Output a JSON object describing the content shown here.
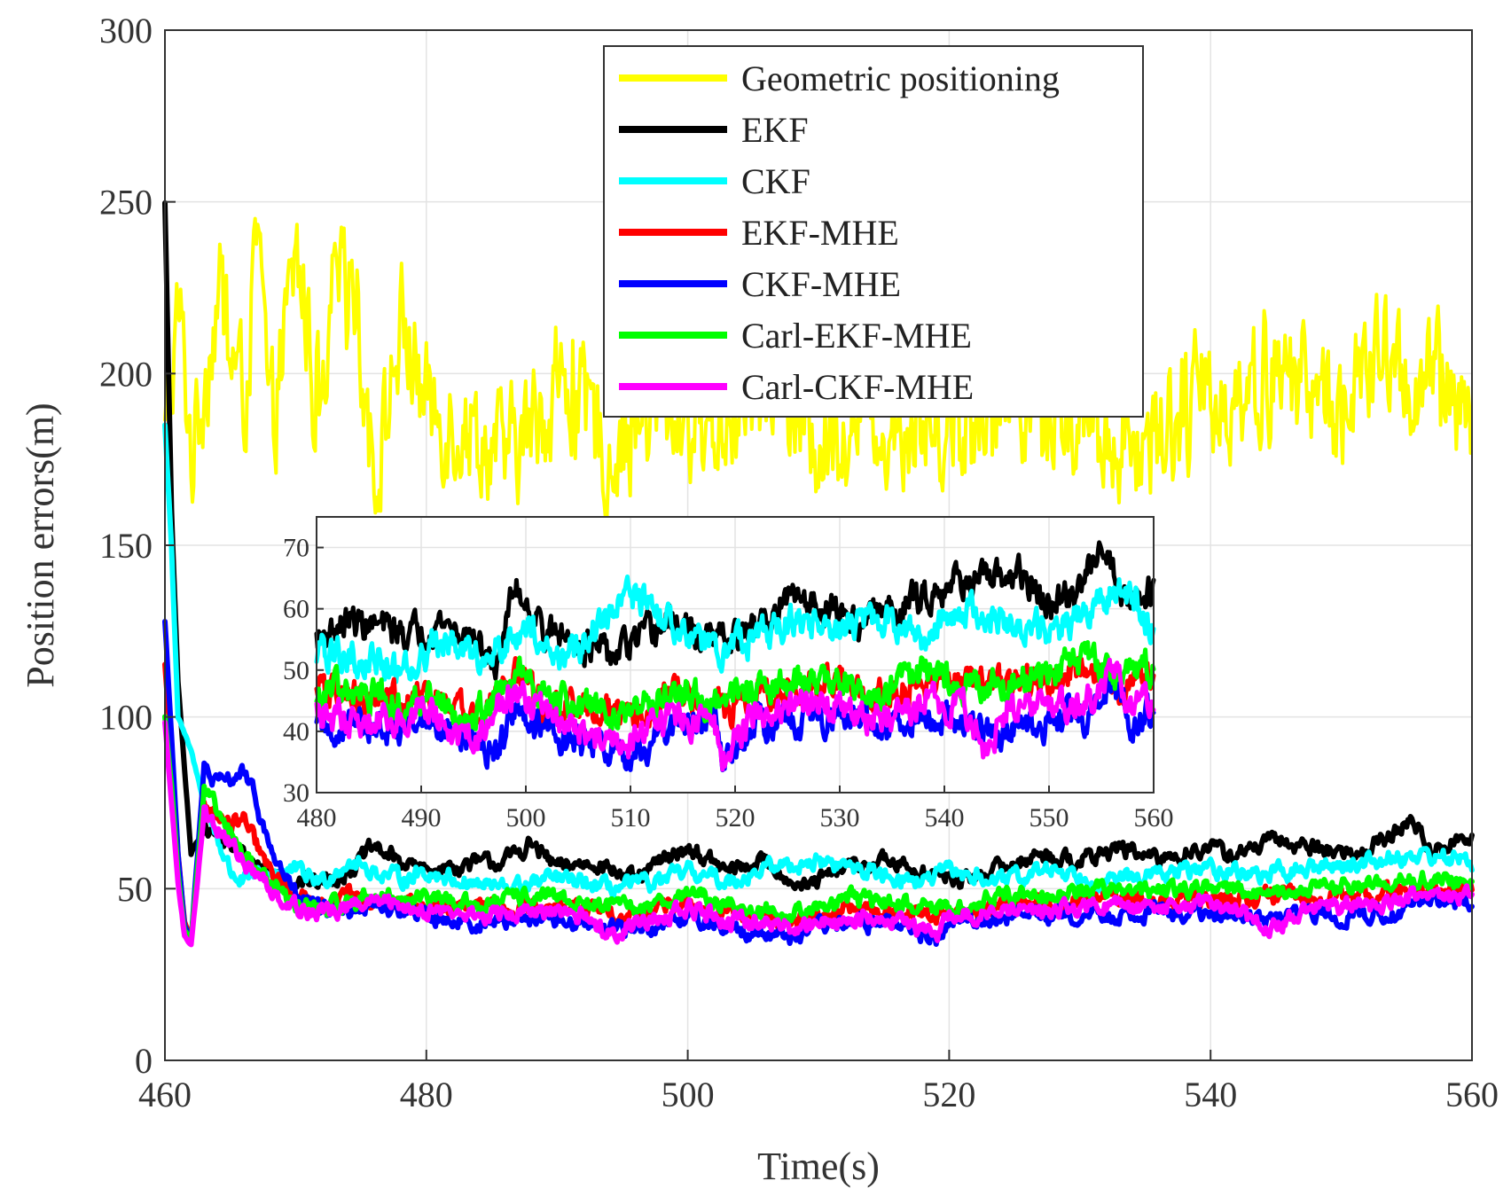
{
  "chart_data": [
    {
      "type": "line",
      "title": "",
      "xlabel": "Time(s)",
      "ylabel": "Position errors(m)",
      "xlim": [
        460,
        560
      ],
      "ylim": [
        0,
        300
      ],
      "xticks": [
        460,
        480,
        500,
        520,
        540,
        560
      ],
      "yticks": [
        0,
        50,
        100,
        150,
        200,
        250,
        300
      ],
      "grid": true,
      "legend_location": "top-center",
      "series": [
        {
          "name": "Geometric positioning",
          "color": "#ffff00",
          "x": [
            460,
            461,
            462,
            464,
            466,
            467,
            468,
            470,
            472,
            474,
            476,
            478,
            480,
            483,
            486,
            490,
            494,
            498,
            502,
            506,
            510,
            514,
            518,
            522,
            526,
            530,
            534,
            538,
            542,
            546,
            550,
            553,
            556,
            558,
            560
          ],
          "values": [
            180,
            220,
            175,
            225,
            190,
            245,
            180,
            235,
            185,
            245,
            165,
            215,
            190,
            185,
            175,
            195,
            180,
            190,
            185,
            195,
            180,
            190,
            185,
            190,
            195,
            185,
            180,
            190,
            195,
            200,
            190,
            205,
            195,
            200,
            190
          ],
          "range": [
            155,
            248
          ]
        },
        {
          "name": "EKF",
          "color": "#000000",
          "x": [
            460,
            460.5,
            461,
            461.5,
            462,
            463,
            464,
            466,
            468,
            470,
            472,
            474,
            476,
            478,
            480,
            483,
            486,
            488,
            490,
            493,
            496,
            498,
            500,
            503,
            506,
            509,
            512,
            515,
            518,
            521,
            524,
            527,
            530,
            533,
            536,
            539,
            542,
            545,
            548,
            551,
            554,
            555.5,
            557,
            558.5,
            560
          ],
          "values": [
            250,
            160,
            110,
            85,
            60,
            68,
            65,
            60,
            55,
            52,
            52,
            55,
            62,
            58,
            55,
            57,
            58,
            63,
            56,
            58,
            52,
            58,
            62,
            55,
            58,
            50,
            56,
            58,
            55,
            52,
            56,
            60,
            58,
            62,
            58,
            62,
            60,
            64,
            62,
            60,
            66,
            70,
            60,
            64,
            64
          ]
        },
        {
          "name": "CKF",
          "color": "#00ffff",
          "x": [
            460,
            460.5,
            461,
            462,
            463,
            464,
            465,
            466,
            468,
            470,
            472,
            474,
            476,
            478,
            480,
            483,
            486,
            490,
            494,
            498,
            500,
            503,
            506,
            510,
            514,
            518,
            520,
            524,
            528,
            532,
            536,
            540,
            544,
            548,
            552,
            556,
            560
          ],
          "values": [
            185,
            150,
            100,
            90,
            75,
            65,
            55,
            52,
            55,
            55,
            52,
            58,
            55,
            53,
            55,
            52,
            50,
            53,
            50,
            52,
            55,
            52,
            56,
            58,
            55,
            52,
            55,
            52,
            56,
            52,
            54,
            56,
            54,
            56,
            58,
            60,
            58
          ]
        },
        {
          "name": "EKF-MHE",
          "color": "#ff0000",
          "x": [
            460,
            460.5,
            461,
            461.5,
            462,
            463,
            464,
            465,
            466,
            468,
            470,
            472,
            474,
            476,
            480,
            484,
            488,
            492,
            496,
            500,
            504,
            508,
            512,
            516,
            520,
            524,
            528,
            532,
            536,
            540,
            544,
            548,
            552,
            556,
            560
          ],
          "values": [
            115,
            90,
            60,
            40,
            35,
            75,
            72,
            68,
            70,
            55,
            48,
            45,
            48,
            46,
            45,
            44,
            45,
            44,
            42,
            46,
            42,
            41,
            44,
            43,
            42,
            45,
            46,
            47,
            46,
            47,
            48,
            47,
            48,
            50,
            50
          ]
        },
        {
          "name": "CKF-MHE",
          "color": "#0000ff",
          "x": [
            460,
            460.5,
            461,
            461.5,
            462,
            463,
            464,
            465,
            466,
            467,
            468,
            470,
            472,
            474,
            476,
            480,
            484,
            488,
            492,
            496,
            500,
            504,
            508,
            512,
            516,
            519,
            520,
            524,
            528,
            532,
            536,
            540,
            544,
            548,
            552,
            556,
            560
          ],
          "values": [
            128,
            95,
            60,
            40,
            35,
            85,
            80,
            82,
            84,
            75,
            62,
            48,
            43,
            44,
            45,
            42,
            40,
            42,
            40,
            38,
            42,
            38,
            36,
            40,
            40,
            34,
            40,
            42,
            43,
            42,
            44,
            42,
            41,
            43,
            42,
            45,
            47
          ]
        },
        {
          "name": "Carl-EKF-MHE",
          "color": "#00ff00",
          "x": [
            460,
            460.5,
            461,
            461.5,
            462,
            463,
            464,
            466,
            468,
            470,
            472,
            476,
            480,
            484,
            488,
            492,
            496,
            500,
            504,
            508,
            512,
            516,
            520,
            524,
            528,
            532,
            536,
            540,
            544,
            548,
            552,
            556,
            560
          ],
          "values": [
            100,
            80,
            55,
            38,
            35,
            78,
            72,
            60,
            52,
            45,
            44,
            48,
            47,
            45,
            48,
            46,
            44,
            49,
            44,
            43,
            47,
            46,
            44,
            48,
            49,
            50,
            49,
            51,
            48,
            50,
            51,
            53,
            52
          ]
        },
        {
          "name": "Carl-CKF-MHE",
          "color": "#ff00ff",
          "x": [
            460,
            460.5,
            461,
            461.5,
            462,
            463,
            464,
            466,
            468,
            470,
            472,
            476,
            480,
            484,
            488,
            492,
            494,
            496,
            500,
            504,
            508,
            512,
            516,
            519,
            520,
            524,
            528,
            532,
            536,
            540,
            544,
            548,
            552,
            556,
            560
          ],
          "values": [
            98,
            75,
            52,
            36,
            34,
            72,
            68,
            58,
            50,
            45,
            43,
            46,
            44,
            42,
            43,
            42,
            37,
            40,
            44,
            40,
            39,
            41,
            42,
            36,
            42,
            43,
            44,
            45,
            44,
            46,
            39,
            44,
            45,
            47,
            48
          ]
        }
      ]
    },
    {
      "type": "line",
      "role": "inset",
      "title": "",
      "xlim": [
        480,
        560
      ],
      "ylim": [
        30,
        75
      ],
      "xticks": [
        480,
        490,
        500,
        510,
        520,
        530,
        540,
        550,
        560
      ],
      "yticks": [
        30,
        40,
        50,
        60,
        70
      ],
      "grid": true,
      "series": [
        {
          "name": "EKF",
          "color": "#000000",
          "x": [
            480,
            483,
            486,
            489,
            492,
            495,
            497,
            499,
            502,
            505,
            508,
            511,
            514,
            517,
            520,
            523,
            526,
            529,
            532,
            535,
            538,
            541,
            544,
            547,
            550,
            553,
            555,
            557,
            560
          ],
          "values": [
            55,
            58,
            57,
            56,
            58,
            55,
            50,
            64,
            56,
            55,
            52,
            55,
            58,
            55,
            55,
            58,
            62,
            60,
            58,
            60,
            62,
            65,
            64,
            66,
            60,
            63,
            72,
            62,
            63
          ]
        },
        {
          "name": "CKF",
          "color": "#00ffff",
          "x": [
            480,
            484,
            488,
            492,
            496,
            500,
            503,
            506,
            510,
            514,
            518,
            522,
            526,
            530,
            534,
            538,
            542,
            546,
            550,
            554,
            557,
            560
          ],
          "values": [
            53,
            52,
            50,
            55,
            52,
            58,
            52,
            55,
            62,
            58,
            53,
            55,
            58,
            56,
            58,
            55,
            60,
            58,
            56,
            60,
            64,
            57
          ]
        },
        {
          "name": "EKF-MHE",
          "color": "#ff0000",
          "x": [
            480,
            484,
            488,
            492,
            495,
            499,
            502,
            506,
            510,
            514,
            518,
            522,
            526,
            530,
            534,
            538,
            542,
            546,
            550,
            554,
            557,
            560
          ],
          "values": [
            47,
            46,
            45,
            45,
            42,
            49,
            44,
            44,
            42,
            46,
            43,
            46,
            47,
            48,
            46,
            48,
            48,
            47,
            49,
            51,
            47,
            50
          ]
        },
        {
          "name": "CKF-MHE",
          "color": "#0000ff",
          "x": [
            480,
            484,
            488,
            492,
            495,
            497,
            499,
            502,
            506,
            510,
            514,
            518,
            519,
            522,
            526,
            530,
            534,
            538,
            542,
            546,
            550,
            554,
            556,
            558,
            560
          ],
          "values": [
            40,
            41,
            40,
            42,
            38,
            36,
            44,
            40,
            38,
            36,
            40,
            42,
            34,
            42,
            41,
            43,
            41,
            43,
            41,
            40,
            42,
            43,
            48,
            41,
            43
          ]
        },
        {
          "name": "Carl-EKF-MHE",
          "color": "#00ff00",
          "x": [
            480,
            484,
            488,
            492,
            495,
            499,
            502,
            506,
            510,
            514,
            518,
            522,
            526,
            530,
            534,
            538,
            542,
            546,
            550,
            554,
            557,
            560
          ],
          "values": [
            46,
            47,
            45,
            46,
            42,
            50,
            46,
            44,
            42,
            47,
            44,
            47,
            48,
            48,
            46,
            49,
            48,
            48,
            50,
            52,
            48,
            51
          ]
        },
        {
          "name": "Carl-CKF-MHE",
          "color": "#ff00ff",
          "x": [
            480,
            484,
            488,
            492,
            495,
            499,
            502,
            506,
            510,
            514,
            518,
            519,
            522,
            526,
            530,
            534,
            538,
            542,
            544,
            546,
            550,
            554,
            556,
            558,
            560
          ],
          "values": [
            44,
            42,
            43,
            42,
            38,
            47,
            42,
            40,
            38,
            42,
            42,
            36,
            43,
            44,
            44,
            42,
            45,
            44,
            37,
            44,
            44,
            45,
            50,
            44,
            46
          ]
        }
      ]
    }
  ]
}
